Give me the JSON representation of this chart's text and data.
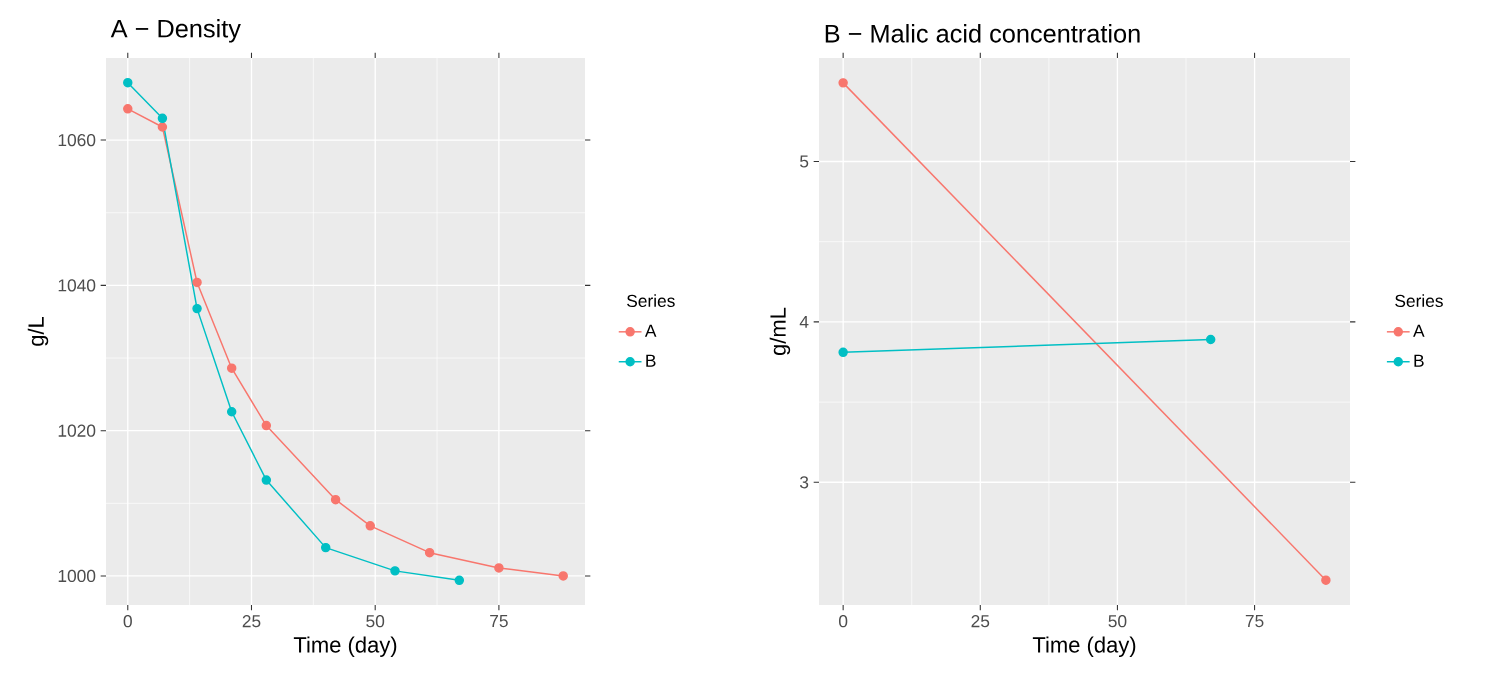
{
  "chart_data": [
    {
      "type": "line",
      "title": "A − Density",
      "xlabel": "Time (day)",
      "ylabel": "g/L",
      "legend_title": "Series",
      "xlim": [
        -4.4,
        92.4
      ],
      "ylim": [
        996.0,
        1071.3
      ],
      "xticks": [
        0,
        25,
        50,
        75
      ],
      "yticks": [
        1000,
        1020,
        1040,
        1060
      ],
      "grid": true,
      "legend": "right",
      "marker": "circle",
      "line_style": "solid",
      "series": [
        {
          "name": "A",
          "color": "#F8766D",
          "x": [
            0,
            7,
            14,
            21,
            28,
            42,
            49,
            61,
            75,
            88
          ],
          "values": [
            1064.3,
            1061.8,
            1040.4,
            1028.6,
            1020.7,
            1010.5,
            1006.9,
            1003.2,
            1001.1,
            1000.0
          ]
        },
        {
          "name": "B",
          "color": "#00BFC4",
          "x": [
            0,
            7,
            14,
            21,
            28,
            40,
            54,
            67
          ],
          "values": [
            1067.9,
            1063.0,
            1036.8,
            1022.6,
            1013.2,
            1003.9,
            1000.7,
            999.4
          ]
        }
      ]
    },
    {
      "type": "line",
      "title": "B − Malic acid concentration",
      "xlabel": "Time (day)",
      "ylabel": "g/mL",
      "legend_title": "Series",
      "xlim": [
        -4.4,
        92.4
      ],
      "ylim": [
        2.235,
        5.645
      ],
      "xticks": [
        0,
        25,
        50,
        75
      ],
      "yticks": [
        3,
        4,
        5
      ],
      "grid": true,
      "legend": "right",
      "marker": "circle",
      "line_style": "solid",
      "series": [
        {
          "name": "A",
          "color": "#F8766D",
          "x": [
            0,
            88
          ],
          "values": [
            5.49,
            2.39
          ]
        },
        {
          "name": "B",
          "color": "#00BFC4",
          "x": [
            0,
            67
          ],
          "values": [
            3.81,
            3.89
          ]
        }
      ]
    }
  ]
}
